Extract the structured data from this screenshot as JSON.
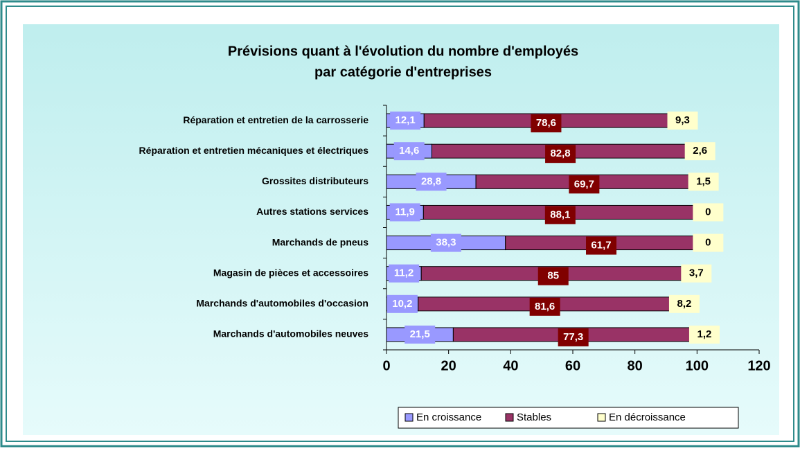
{
  "chart_data": {
    "type": "stacked-barh",
    "title": "Prévisions quant à l'évolution du nombre d'employés",
    "subtitle": "par catégorie d'entreprises",
    "categories": [
      "Réparation et entretien de la carrosserie",
      "Réparation et entretien mécaniques et électriques",
      "Grossites distributeurs",
      "Autres stations services",
      "Marchands de pneus",
      "Magasin de pièces et accessoires",
      "Marchands d'automobiles d'occasion",
      "Marchands d'automobiles neuves"
    ],
    "series": [
      {
        "name": "En croissance",
        "color": "#9999ff",
        "values": [
          12.1,
          14.6,
          28.8,
          11.9,
          38.3,
          11.2,
          10.2,
          21.5
        ],
        "value_labels": [
          "12,1",
          "14,6",
          "28,8",
          "11,9",
          "38,3",
          "11,2",
          "10,2",
          "21,5"
        ]
      },
      {
        "name": "Stables",
        "color": "#993366",
        "values": [
          78.6,
          82.8,
          69.7,
          88.1,
          61.7,
          85,
          81.6,
          77.3
        ],
        "value_labels": [
          "78,6",
          "82,8",
          "69,7",
          "88,1",
          "61,7",
          "85",
          "81,6",
          "77,3"
        ]
      },
      {
        "name": "En décroissance",
        "color": "#ffffcc",
        "values": [
          9.3,
          2.6,
          1.5,
          0,
          0,
          3.7,
          8.2,
          1.2
        ],
        "value_labels": [
          "9,3",
          "2,6",
          "1,5",
          "0",
          "0",
          "3,7",
          "8,2",
          "1,2"
        ]
      }
    ],
    "xlim": [
      0,
      120
    ],
    "xticks": [
      0,
      20,
      40,
      60,
      80,
      100,
      120
    ],
    "legend": "bottom"
  }
}
